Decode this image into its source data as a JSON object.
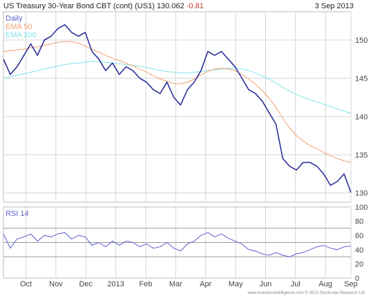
{
  "header": {
    "title": "US Treasury 30-Year  Bond CBT (cont) (US1)",
    "price": "130.062",
    "change": "-0.81",
    "date": "3 Sep 2013"
  },
  "footer": "www.investorsintelligence.com  © 2013 Stockcube Research Ltd",
  "colors": {
    "price": "#2b2f99",
    "ema50": "#f0a070",
    "ema200": "#7fe3ea",
    "rsi": "#5a5fcf",
    "grid": "#d4d4d4"
  },
  "chart_data": [
    {
      "type": "line",
      "legend": [
        "Daily",
        "EMA 50",
        "EMA 200"
      ],
      "x": [
        "Sep 12",
        "Sep 19",
        "Sep 26",
        "Oct 3",
        "Oct 10",
        "Oct 17",
        "Oct 24",
        "Oct 31",
        "Nov 7",
        "Nov 14",
        "Nov 21",
        "Nov 28",
        "Dec 5",
        "Dec 12",
        "Dec 19",
        "Dec 26",
        "Jan 2",
        "Jan 9",
        "Jan 16",
        "Jan 23",
        "Jan 30",
        "Feb 6",
        "Feb 13",
        "Feb 20",
        "Feb 27",
        "Mar 6",
        "Mar 13",
        "Mar 20",
        "Mar 27",
        "Apr 3",
        "Apr 10",
        "Apr 17",
        "Apr 24",
        "May 1",
        "May 8",
        "May 15",
        "May 22",
        "May 29",
        "Jun 5",
        "Jun 12",
        "Jun 19",
        "Jun 26",
        "Jul 3",
        "Jul 10",
        "Jul 17",
        "Jul 24",
        "Jul 31",
        "Aug 7",
        "Aug 14",
        "Aug 21",
        "Aug 28",
        "Sep 3"
      ],
      "x_tick_labels": [
        "Oct",
        "Nov",
        "Dec",
        "2013",
        "Feb",
        "Mar",
        "Apr",
        "May",
        "Jun",
        "Jul",
        "Aug",
        "Sep"
      ],
      "series": [
        {
          "name": "Daily",
          "values": [
            147.5,
            145.5,
            146.5,
            148.0,
            149.5,
            148.0,
            150.0,
            150.5,
            151.5,
            152.0,
            151.0,
            150.5,
            151.0,
            148.5,
            147.5,
            146.0,
            147.0,
            145.5,
            146.5,
            146.0,
            145.0,
            144.5,
            143.5,
            143.0,
            144.5,
            142.5,
            141.5,
            143.5,
            144.5,
            146.0,
            148.5,
            148.0,
            148.5,
            147.5,
            146.5,
            145.0,
            143.5,
            143.0,
            142.0,
            140.5,
            139.0,
            134.5,
            133.5,
            133.0,
            134.0,
            134.0,
            133.5,
            132.5,
            131.0,
            131.5,
            132.5,
            130.062
          ]
        },
        {
          "name": "EMA 50",
          "values": [
            148.5,
            148.6,
            148.7,
            148.8,
            149.0,
            149.1,
            149.3,
            149.5,
            149.7,
            149.8,
            149.8,
            149.6,
            149.2,
            148.8,
            148.4,
            148.0,
            147.6,
            147.3,
            147.0,
            146.6,
            146.2,
            145.8,
            145.3,
            144.9,
            144.6,
            144.3,
            144.3,
            144.5,
            144.9,
            145.4,
            145.9,
            146.2,
            146.3,
            146.2,
            146.0,
            145.5,
            144.9,
            144.2,
            143.4,
            142.4,
            141.2,
            139.8,
            138.5,
            137.5,
            136.8,
            136.2,
            135.8,
            135.3,
            134.9,
            134.5,
            134.2,
            134.0
          ]
        },
        {
          "name": "EMA 200",
          "values": [
            145.0,
            145.2,
            145.4,
            145.6,
            145.8,
            146.0,
            146.2,
            146.4,
            146.6,
            146.8,
            146.9,
            147.0,
            147.1,
            147.2,
            147.2,
            147.1,
            147.0,
            146.9,
            146.8,
            146.7,
            146.6,
            146.4,
            146.2,
            146.0,
            145.9,
            145.8,
            145.7,
            145.7,
            145.8,
            145.9,
            146.0,
            146.1,
            146.2,
            146.3,
            146.3,
            146.2,
            146.0,
            145.7,
            145.3,
            144.9,
            144.4,
            143.8,
            143.3,
            142.9,
            142.5,
            142.2,
            141.9,
            141.6,
            141.3,
            141.0,
            140.7,
            140.4
          ]
        }
      ],
      "y_ticks": [
        130,
        135,
        140,
        145,
        150
      ],
      "ylim": [
        128.8,
        153.7
      ]
    },
    {
      "type": "line",
      "legend": [
        "RSI 14"
      ],
      "series": [
        {
          "name": "RSI 14",
          "values": [
            62,
            42,
            55,
            58,
            62,
            52,
            60,
            58,
            62,
            64,
            55,
            60,
            58,
            46,
            50,
            44,
            52,
            46,
            52,
            50,
            44,
            48,
            42,
            44,
            50,
            42,
            38,
            48,
            52,
            60,
            64,
            58,
            62,
            56,
            52,
            48,
            40,
            38,
            34,
            32,
            36,
            32,
            30,
            34,
            36,
            40,
            44,
            46,
            42,
            40,
            44,
            45
          ]
        }
      ],
      "y_ticks": [
        0,
        20,
        40,
        60,
        80,
        100
      ],
      "ylim": [
        0,
        100
      ],
      "reference_lines": [
        30,
        50,
        70
      ]
    }
  ]
}
